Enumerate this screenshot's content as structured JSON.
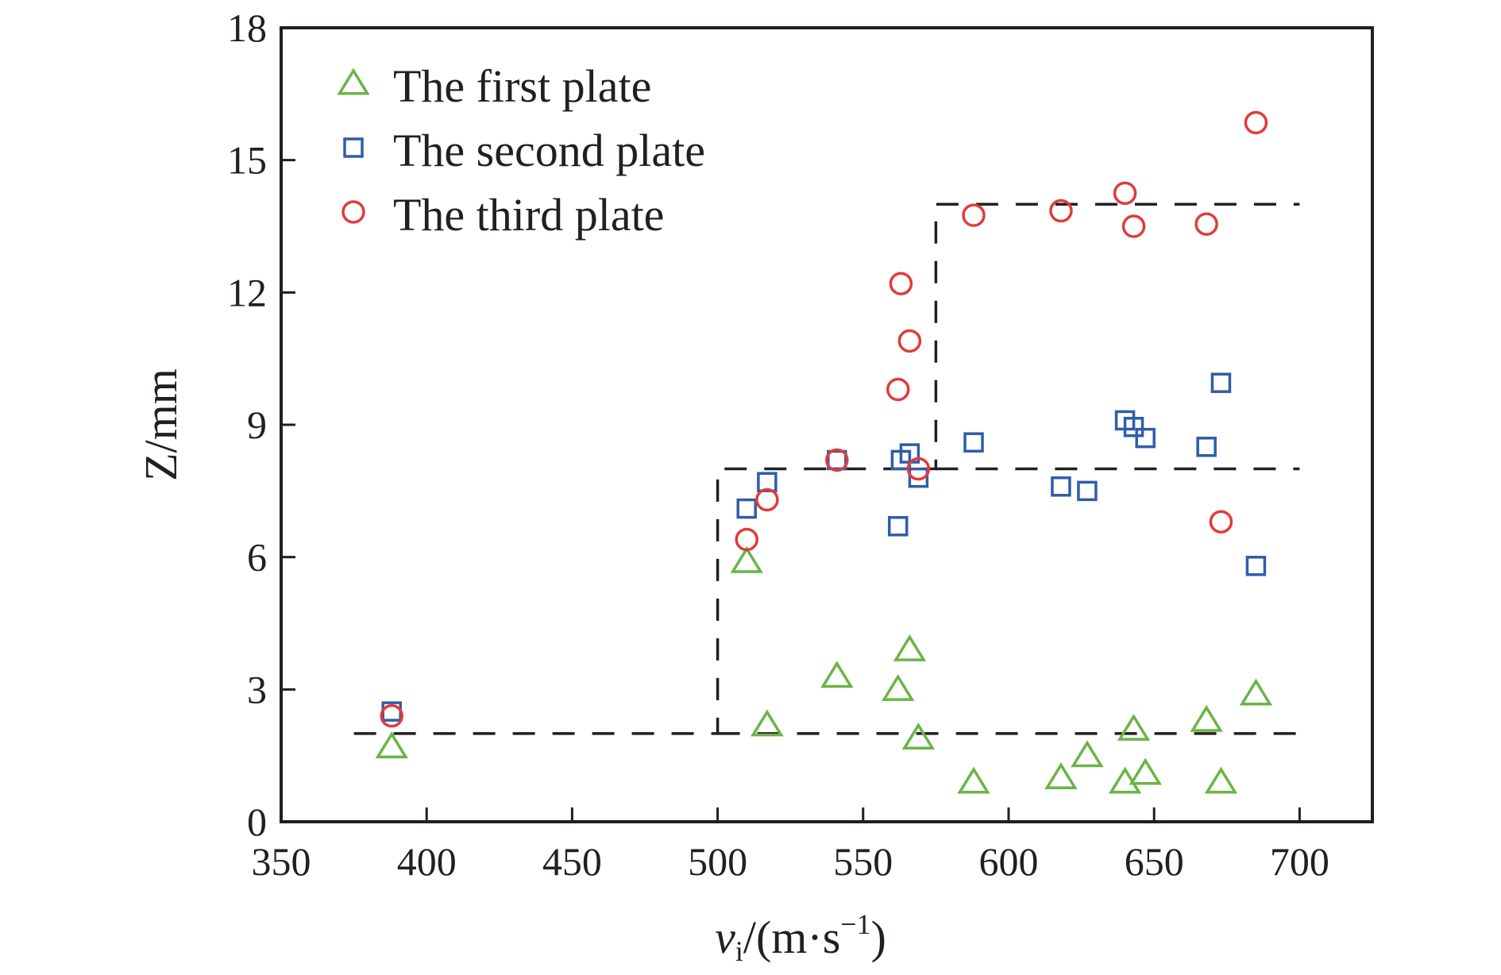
{
  "chart_data": {
    "type": "scatter",
    "title": "",
    "xlabel": {
      "main": "v",
      "sub": "i",
      "unit": "/(m·s",
      "sup": "−1",
      "close": ")"
    },
    "ylabel": "Z/mm",
    "xlim": [
      350,
      725
    ],
    "ylim": [
      0,
      18
    ],
    "xticks": [
      350,
      400,
      450,
      500,
      550,
      600,
      650,
      700
    ],
    "yticks": [
      0,
      3,
      6,
      9,
      12,
      15,
      18
    ],
    "xtick_labels": [
      "350",
      "400",
      "450",
      "500",
      "550",
      "600",
      "650",
      "700"
    ],
    "ytick_labels": [
      "0",
      "3",
      "6",
      "9",
      "12",
      "15",
      "18"
    ],
    "grid": false,
    "legend_position": "top-left",
    "series": [
      {
        "name": "The first plate",
        "marker": "triangle",
        "color": "#6ab545",
        "points": [
          [
            388,
            1.7
          ],
          [
            510,
            5.9
          ],
          [
            517,
            2.2
          ],
          [
            541,
            3.3
          ],
          [
            562,
            3.0
          ],
          [
            566,
            3.9
          ],
          [
            569,
            1.9
          ],
          [
            588,
            0.9
          ],
          [
            618,
            1.0
          ],
          [
            627,
            1.5
          ],
          [
            640,
            0.9
          ],
          [
            643,
            2.1
          ],
          [
            647,
            1.1
          ],
          [
            668,
            2.3
          ],
          [
            673,
            0.9
          ],
          [
            685,
            2.9
          ]
        ]
      },
      {
        "name": "The second plate",
        "marker": "square",
        "color": "#2f5da8",
        "points": [
          [
            388,
            2.5
          ],
          [
            510,
            7.1
          ],
          [
            517,
            7.7
          ],
          [
            541,
            8.2
          ],
          [
            562,
            6.7
          ],
          [
            563,
            8.2
          ],
          [
            566,
            8.35
          ],
          [
            569,
            7.8
          ],
          [
            588,
            8.6
          ],
          [
            618,
            7.6
          ],
          [
            627,
            7.5
          ],
          [
            640,
            9.1
          ],
          [
            643,
            8.95
          ],
          [
            647,
            8.7
          ],
          [
            668,
            8.5
          ],
          [
            673,
            9.95
          ],
          [
            685,
            5.8
          ]
        ]
      },
      {
        "name": "The third plate",
        "marker": "circle",
        "color": "#e03c3a",
        "points": [
          [
            388,
            2.4
          ],
          [
            510,
            6.4
          ],
          [
            517,
            7.3
          ],
          [
            541,
            8.2
          ],
          [
            562,
            9.8
          ],
          [
            563,
            12.2
          ],
          [
            566,
            10.9
          ],
          [
            569,
            8.0
          ],
          [
            588,
            13.75
          ],
          [
            618,
            13.85
          ],
          [
            640,
            14.25
          ],
          [
            643,
            13.5
          ],
          [
            668,
            13.55
          ],
          [
            673,
            6.8
          ],
          [
            685,
            15.85
          ]
        ]
      }
    ],
    "reference_lines": [
      {
        "style": "dashed",
        "points": [
          [
            375,
            2
          ],
          [
            500,
            2
          ],
          [
            500,
            8
          ],
          [
            575,
            8
          ],
          [
            575,
            14
          ],
          [
            700,
            14
          ]
        ]
      },
      {
        "style": "dashed",
        "points": [
          [
            500,
            2
          ],
          [
            700,
            2
          ]
        ]
      },
      {
        "style": "dashed",
        "points": [
          [
            575,
            8
          ],
          [
            700,
            8
          ]
        ]
      }
    ]
  }
}
